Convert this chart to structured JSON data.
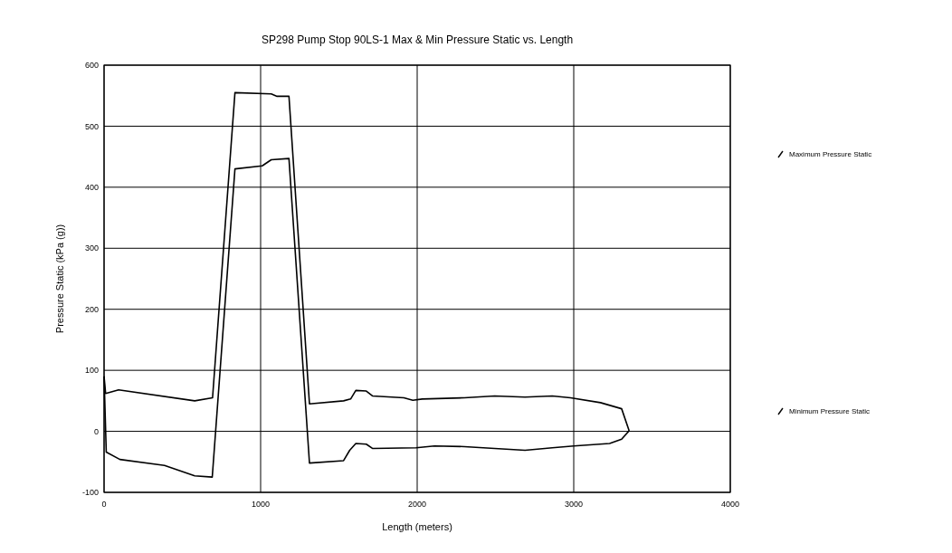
{
  "chart_data": {
    "type": "line",
    "title": "SP298 Pump Stop 90LS-1 Max & Min Pressure Static vs. Length",
    "xlabel": "Length (meters)",
    "ylabel": "Pressure Static (kPa (g))",
    "xlim": [
      0,
      4000
    ],
    "xticks": [
      0,
      1000,
      2000,
      3000,
      4000
    ],
    "ylim": [
      -100,
      600
    ],
    "yticks": [
      -100,
      0,
      100,
      200,
      300,
      400,
      500,
      600
    ],
    "grid": true,
    "legend": "right",
    "marker": "none",
    "line_style": "solid",
    "series": [
      {
        "name": "Maximum Pressure Static",
        "color": "#000000",
        "x": [
          0,
          10,
          93,
          579,
          693,
          836,
          1068,
          1105,
          1181,
          1312,
          1530,
          1575,
          1608,
          1675,
          1714,
          1915,
          1972,
          2032,
          2302,
          2495,
          2689,
          2863,
          2979,
          3171,
          3306,
          3354
        ],
        "values": [
          90,
          62,
          68,
          50,
          55,
          555,
          553,
          549,
          549,
          45,
          50,
          53,
          67,
          66,
          58,
          55,
          51,
          53,
          55,
          58,
          56,
          58,
          55,
          47,
          37,
          1
        ]
      },
      {
        "name": "Minimum Pressure Static",
        "color": "#000000",
        "x": [
          0,
          14,
          101,
          386,
          579,
          691,
          836,
          1010,
          1068,
          1181,
          1312,
          1530,
          1569,
          1608,
          1675,
          1714,
          1993,
          2110,
          2302,
          2495,
          2689,
          2863,
          3000,
          3229,
          3306,
          3354
        ],
        "values": [
          90,
          -34,
          -46,
          -56,
          -73,
          -75,
          430,
          435,
          445,
          447,
          -52,
          -48,
          -31,
          -20,
          -21,
          -28,
          -27,
          -24,
          -25,
          -28,
          -31,
          -27,
          -24,
          -20,
          -13,
          1
        ]
      }
    ]
  }
}
